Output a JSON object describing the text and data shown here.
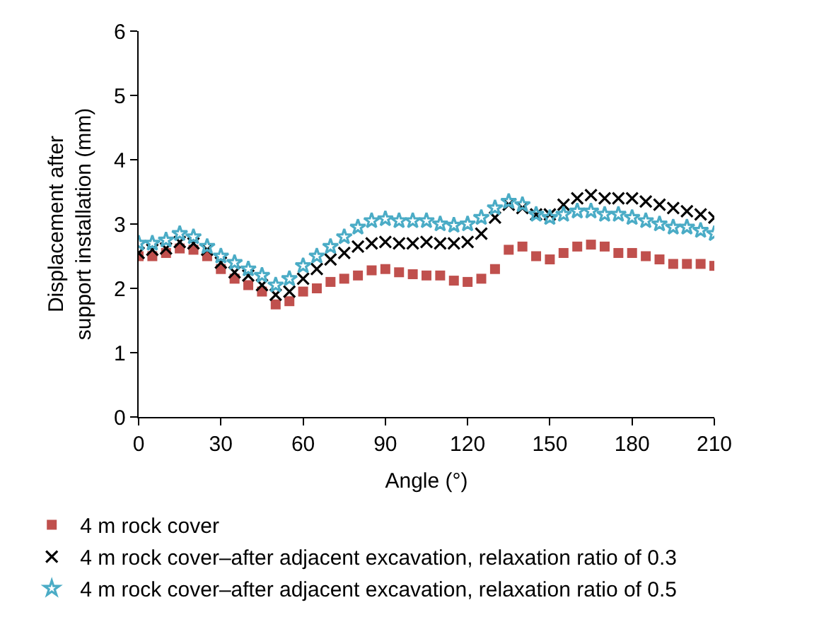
{
  "chart_data": {
    "type": "scatter",
    "xlabel": "Angle (°)",
    "ylabel": "Displacement after support installation (mm)",
    "x": [
      0,
      5,
      10,
      15,
      20,
      25,
      30,
      35,
      40,
      45,
      50,
      55,
      60,
      65,
      70,
      75,
      80,
      85,
      90,
      95,
      100,
      105,
      110,
      115,
      120,
      125,
      130,
      135,
      140,
      145,
      150,
      155,
      160,
      165,
      170,
      175,
      180,
      185,
      190,
      195,
      200,
      205,
      210
    ],
    "xlim": [
      0,
      210
    ],
    "xticks": [
      0,
      30,
      60,
      90,
      120,
      150,
      180,
      210
    ],
    "ylim": [
      0,
      6
    ],
    "yticks": [
      0,
      1,
      2,
      3,
      4,
      5,
      6
    ],
    "grid": false,
    "legend": "bottom left",
    "series": [
      {
        "name": "4 m rock cover",
        "color": "#c0504d",
        "marker": "square",
        "values": [
          2.5,
          2.5,
          2.55,
          2.62,
          2.6,
          2.5,
          2.3,
          2.15,
          2.05,
          1.95,
          1.75,
          1.8,
          1.95,
          2.0,
          2.1,
          2.15,
          2.2,
          2.28,
          2.3,
          2.25,
          2.22,
          2.2,
          2.2,
          2.12,
          2.1,
          2.15,
          2.3,
          2.6,
          2.65,
          2.5,
          2.45,
          2.55,
          2.65,
          2.68,
          2.65,
          2.55,
          2.55,
          2.5,
          2.45,
          2.38,
          2.38,
          2.38,
          2.35
        ]
      },
      {
        "name": "4 m rock cover–after adjacent excavation, relaxation ratio of 0.3",
        "color": "#000000",
        "marker": "cross",
        "values": [
          2.55,
          2.6,
          2.62,
          2.72,
          2.7,
          2.6,
          2.4,
          2.25,
          2.2,
          2.05,
          1.9,
          1.95,
          2.15,
          2.3,
          2.45,
          2.55,
          2.65,
          2.7,
          2.72,
          2.7,
          2.7,
          2.72,
          2.7,
          2.7,
          2.72,
          2.85,
          3.1,
          3.3,
          3.25,
          3.15,
          3.15,
          3.3,
          3.4,
          3.45,
          3.4,
          3.4,
          3.4,
          3.35,
          3.3,
          3.25,
          3.2,
          3.15,
          3.1
        ]
      },
      {
        "name": "4 m rock cover–after adjacent excavation, relaxation ratio of 0.5",
        "color": "#4bacc6",
        "marker": "star",
        "values": [
          2.7,
          2.7,
          2.75,
          2.85,
          2.8,
          2.65,
          2.5,
          2.4,
          2.3,
          2.2,
          2.05,
          2.15,
          2.35,
          2.5,
          2.65,
          2.8,
          2.95,
          3.05,
          3.08,
          3.05,
          3.05,
          3.05,
          3.0,
          2.98,
          3.0,
          3.1,
          3.25,
          3.35,
          3.3,
          3.15,
          3.1,
          3.15,
          3.2,
          3.2,
          3.15,
          3.15,
          3.1,
          3.05,
          3.0,
          2.95,
          2.95,
          2.9,
          2.85
        ]
      }
    ]
  }
}
